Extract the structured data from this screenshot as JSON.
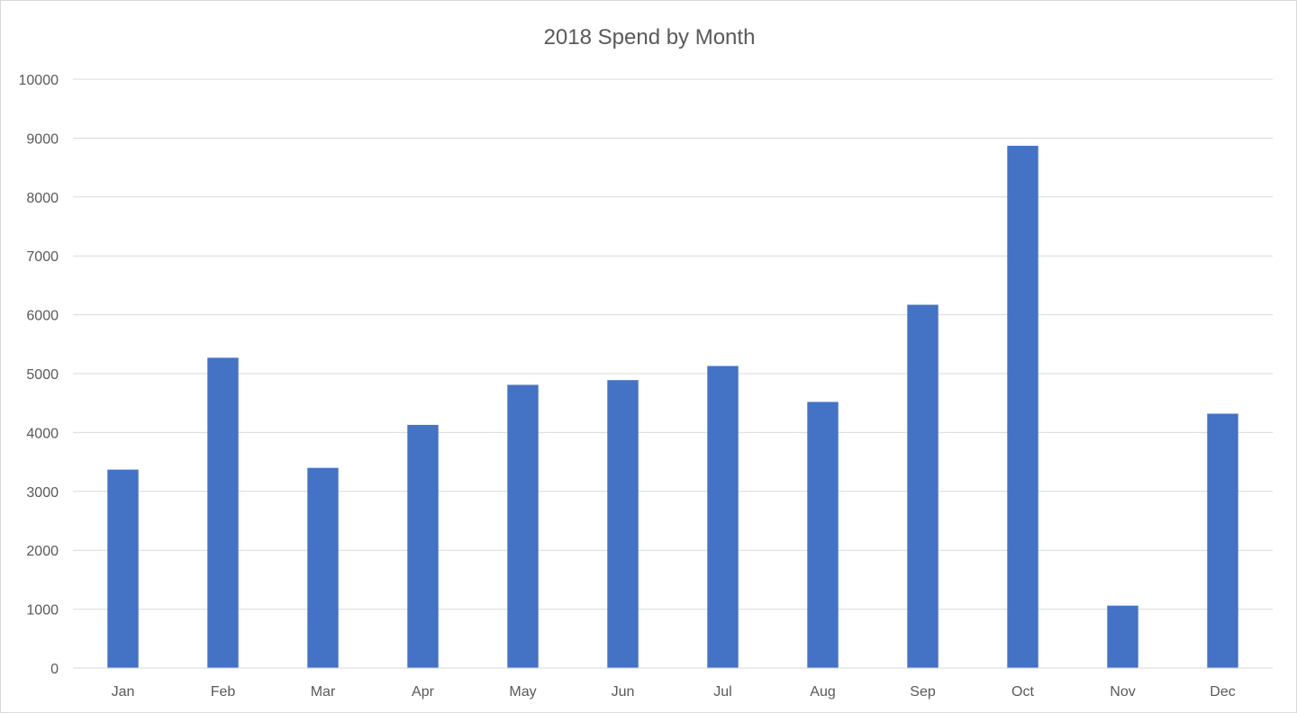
{
  "chart_data": {
    "type": "bar",
    "title": "2018 Spend by Month",
    "xlabel": "",
    "ylabel": "",
    "categories": [
      "Jan",
      "Feb",
      "Mar",
      "Apr",
      "May",
      "Jun",
      "Jul",
      "Aug",
      "Sep",
      "Oct",
      "Nov",
      "Dec"
    ],
    "values": [
      3370,
      5270,
      3400,
      4130,
      4810,
      4890,
      5130,
      4520,
      6170,
      8870,
      1060,
      4320
    ],
    "ylim": [
      0,
      10000
    ],
    "yticks": [
      "0",
      "1000",
      "2000",
      "3000",
      "4000",
      "5000",
      "6000",
      "7000",
      "8000",
      "9000",
      "10000"
    ],
    "grid": true,
    "legend": "none",
    "bar_color": "#4472C4"
  }
}
